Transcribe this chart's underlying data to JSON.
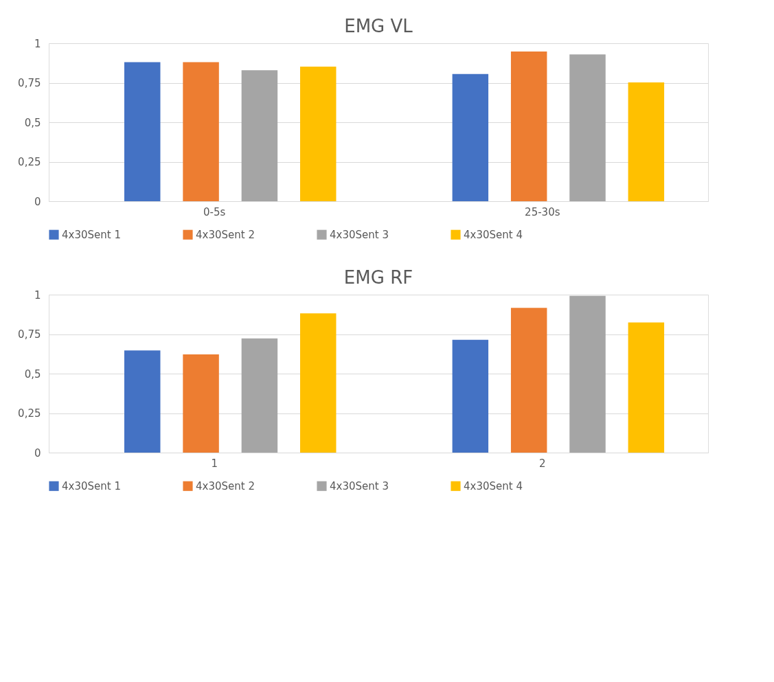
{
  "chart_data": [
    {
      "type": "bar",
      "title": "EMG VL",
      "categories": [
        "0-5s",
        "25-30s"
      ],
      "series": [
        {
          "name": "4x30Sent 1",
          "color": "#4472c4",
          "values": [
            0.88,
            0.805
          ]
        },
        {
          "name": "4x30Sent 2",
          "color": "#ed7d31",
          "values": [
            0.88,
            0.948
          ]
        },
        {
          "name": "4x30Sent 3",
          "color": "#a5a5a5",
          "values": [
            0.829,
            0.929
          ]
        },
        {
          "name": "4x30Sent 4",
          "color": "#ffc000",
          "values": [
            0.852,
            0.752
          ]
        }
      ],
      "ylim": [
        0,
        1
      ],
      "yticks": [
        0,
        {
          "value": 0.25,
          "label": "0,25"
        },
        {
          "value": 0.5,
          "label": "0,5"
        },
        {
          "value": 0.75,
          "label": "0,75"
        },
        1
      ],
      "grid": "y",
      "legend": "bottom"
    },
    {
      "type": "bar",
      "title": "EMG RF",
      "categories": [
        "1",
        "2"
      ],
      "series": [
        {
          "name": "4x30Sent 1",
          "color": "#4472c4",
          "values": [
            0.647,
            0.714
          ]
        },
        {
          "name": "4x30Sent 2",
          "color": "#ed7d31",
          "values": [
            0.622,
            0.916
          ]
        },
        {
          "name": "4x30Sent 3",
          "color": "#a5a5a5",
          "values": [
            0.723,
            0.992
          ]
        },
        {
          "name": "4x30Sent 4",
          "color": "#ffc000",
          "values": [
            0.882,
            0.824
          ]
        }
      ],
      "ylim": [
        0,
        1
      ],
      "yticks": [
        0,
        {
          "value": 0.25,
          "label": "0,25"
        },
        {
          "value": 0.5,
          "label": "0,5"
        },
        {
          "value": 0.75,
          "label": "0,75"
        },
        1
      ],
      "grid": "y",
      "legend": "bottom"
    }
  ]
}
